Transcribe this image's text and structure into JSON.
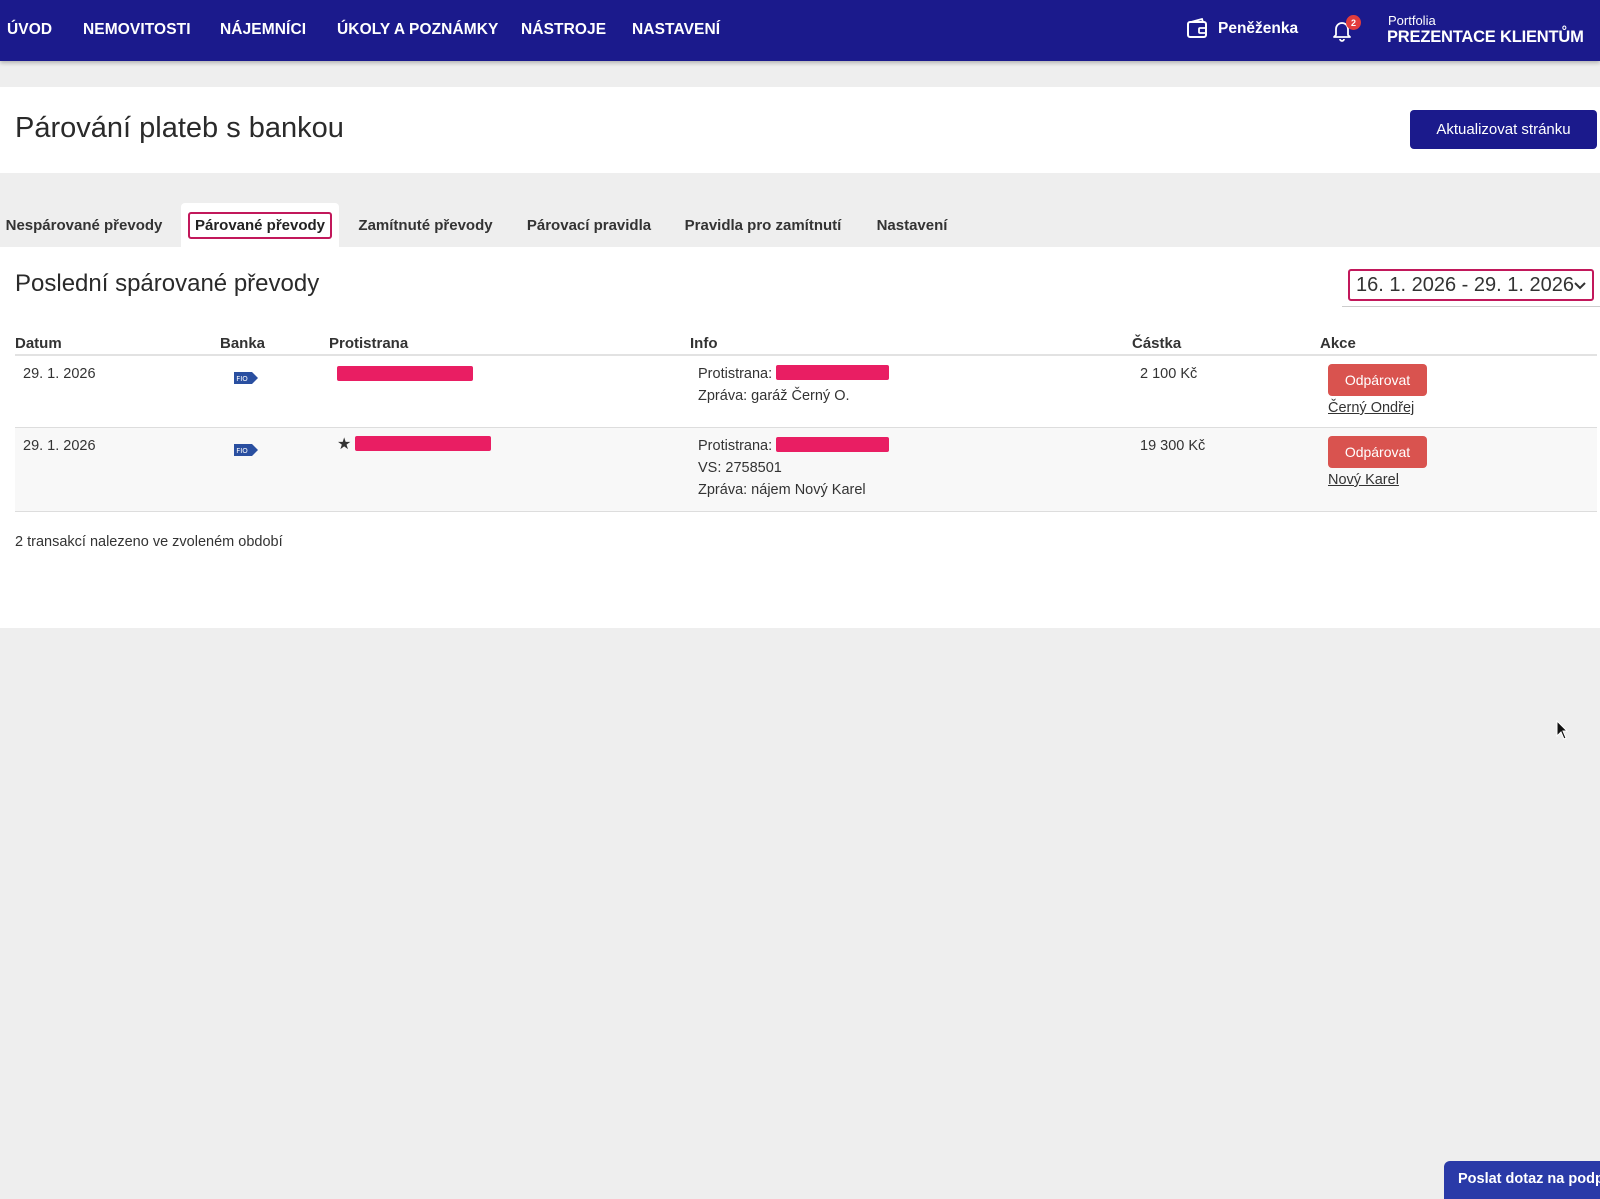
{
  "nav": {
    "items": [
      "ÚVOD",
      "NEMOVITOSTI",
      "NÁJEMNÍCI",
      "ÚKOLY A POZNÁMKY",
      "NÁSTROJE",
      "NASTAVENÍ"
    ],
    "wallet_label": "Peněženka",
    "wallet_icon": "wallet-icon",
    "notification_icon": "bell-icon",
    "notification_count": "2",
    "portfolio_label": "Portfolia",
    "portfolio_name": "PREZENTACE KLIENTŮM"
  },
  "header": {
    "title": "Párování plateb s bankou",
    "refresh_label": "Aktualizovat stránku"
  },
  "tabs": [
    {
      "label": "Nespárované převody",
      "active": false
    },
    {
      "label": "Párované převody",
      "active": true
    },
    {
      "label": "Zamítnuté převody",
      "active": false
    },
    {
      "label": "Párovací pravidla",
      "active": false
    },
    {
      "label": "Pravidla pro zamítnutí",
      "active": false
    },
    {
      "label": "Nastavení",
      "active": false
    }
  ],
  "section": {
    "title": "Poslední spárované převody",
    "date_range": "16. 1. 2026 - 29. 1. 2026"
  },
  "table": {
    "columns": [
      "Datum",
      "Banka",
      "Protistrana",
      "Info",
      "Částka",
      "Akce"
    ],
    "rows": [
      {
        "date": "29. 1. 2026",
        "bank_icon": "bank-logo-icon",
        "starred": false,
        "counterparty": "[redacted]",
        "info_counterparty_label": "Protistrana:",
        "info_vs": "",
        "info_message": "Zpráva: garáž Černý O.",
        "amount": "2 100 Kč",
        "action_label": "Odpárovat",
        "tenant": "Černý Ondřej"
      },
      {
        "date": "29. 1. 2026",
        "bank_icon": "bank-logo-icon",
        "starred": true,
        "star": "★",
        "counterparty": "[redacted]",
        "info_counterparty_label": "Protistrana:",
        "info_vs": "VS: 2758501",
        "info_message": "Zpráva: nájem Nový Karel",
        "amount": "19 300 Kč",
        "action_label": "Odpárovat",
        "tenant": "Nový Karel"
      }
    ],
    "summary": "2 transakcí nalezeno ve zvoleném období"
  },
  "help_button": "Poslat dotaz na podporu",
  "colors": {
    "nav_bg": "#1b1a8c",
    "accent": "#c2185b",
    "danger": "#d9534f",
    "redaction": "#e91e63"
  }
}
